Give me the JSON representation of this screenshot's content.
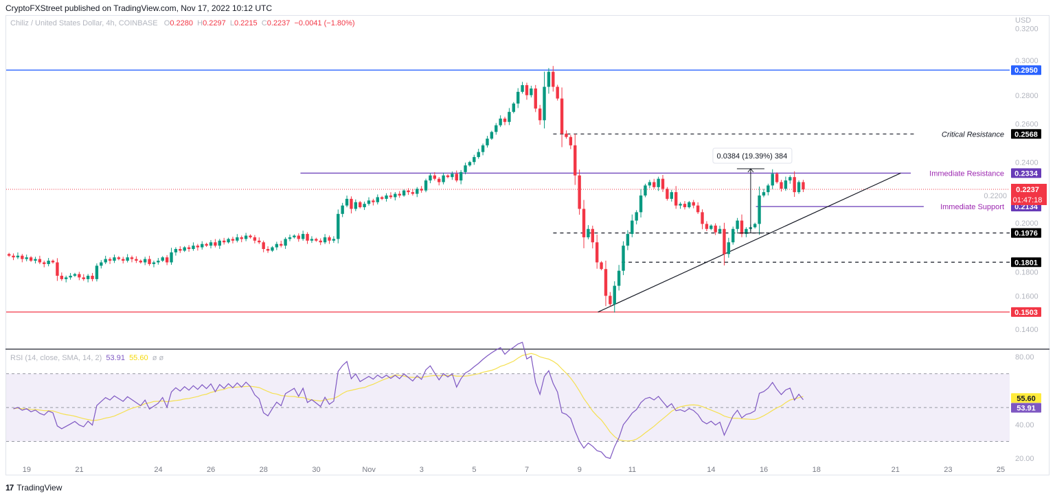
{
  "header": {
    "published": "CryptoFXStreet published on TradingView.com, Nov 17, 2022 10:12 UTC"
  },
  "legend": {
    "symbol": "Chiliz / United States Dollar, 4h, COINBASE",
    "o_label": "O",
    "o": "0.2280",
    "h_label": "H",
    "h": "0.2297",
    "l_label": "L",
    "l": "0.2215",
    "c_label": "C",
    "c": "0.2237",
    "change": "−0.0041 (−1.80%)"
  },
  "rsi_legend": {
    "label": "RSI (14, close, SMA, 14, 2)",
    "rsi": "53.91",
    "sma": "55.60",
    "extra": "ø ø"
  },
  "footer": {
    "brand": "TradingView"
  },
  "colors": {
    "up": "#089981",
    "down": "#f23645",
    "purple": "#673ab7",
    "blue": "#2962ff",
    "rsi": "#7e57c2",
    "sma": "#ffeb3b"
  },
  "chart_data": {
    "type": "candlestick",
    "title": "Chiliz / United States Dollar, 4h, COINBASE",
    "currency": "USD",
    "ylim": [
      0.13,
      0.3125
    ],
    "y_ticks": [
      "0.3200",
      "0.3000",
      "0.2800",
      "0.2600",
      "0.2400",
      "0.2200",
      "0.2000",
      "0.1800",
      "0.1600",
      "0.1400"
    ],
    "x_ticks": [
      "19",
      "21",
      "24",
      "26",
      "28",
      "30",
      "Nov",
      "3",
      "5",
      "7",
      "9",
      "11",
      "14",
      "16",
      "18",
      "21",
      "23",
      "25"
    ],
    "x_tick_days": [
      1,
      3,
      6,
      8,
      10,
      12,
      14,
      16,
      18,
      20,
      22,
      24,
      27,
      29,
      31,
      34,
      36,
      38
    ],
    "first_candle_day": 0.33,
    "candles_per_day": 6,
    "closes": [
      0.184,
      0.183,
      0.184,
      0.182,
      0.183,
      0.181,
      0.182,
      0.18,
      0.179,
      0.181,
      0.18,
      0.172,
      0.17,
      0.171,
      0.172,
      0.173,
      0.171,
      0.17,
      0.172,
      0.17,
      0.178,
      0.18,
      0.182,
      0.181,
      0.183,
      0.182,
      0.181,
      0.183,
      0.182,
      0.181,
      0.18,
      0.182,
      0.179,
      0.18,
      0.181,
      0.183,
      0.18,
      0.186,
      0.188,
      0.187,
      0.189,
      0.188,
      0.19,
      0.189,
      0.191,
      0.19,
      0.192,
      0.19,
      0.193,
      0.192,
      0.194,
      0.193,
      0.195,
      0.194,
      0.196,
      0.195,
      0.193,
      0.192,
      0.188,
      0.187,
      0.189,
      0.191,
      0.19,
      0.194,
      0.195,
      0.196,
      0.194,
      0.197,
      0.193,
      0.194,
      0.193,
      0.192,
      0.195,
      0.193,
      0.194,
      0.209,
      0.214,
      0.218,
      0.212,
      0.216,
      0.213,
      0.215,
      0.217,
      0.216,
      0.219,
      0.218,
      0.22,
      0.219,
      0.221,
      0.22,
      0.223,
      0.222,
      0.221,
      0.224,
      0.223,
      0.229,
      0.232,
      0.23,
      0.228,
      0.232,
      0.231,
      0.233,
      0.229,
      0.234,
      0.238,
      0.24,
      0.243,
      0.246,
      0.25,
      0.254,
      0.258,
      0.262,
      0.266,
      0.264,
      0.27,
      0.275,
      0.282,
      0.286,
      0.28,
      0.284,
      0.272,
      0.265,
      0.285,
      0.294,
      0.285,
      0.278,
      0.257,
      0.255,
      0.25,
      0.232,
      0.212,
      0.195,
      0.2,
      0.192,
      0.18,
      0.176,
      0.16,
      0.155,
      0.166,
      0.175,
      0.19,
      0.197,
      0.205,
      0.21,
      0.22,
      0.226,
      0.228,
      0.225,
      0.23,
      0.224,
      0.218,
      0.222,
      0.214,
      0.215,
      0.213,
      0.216,
      0.214,
      0.21,
      0.203,
      0.2,
      0.202,
      0.198,
      0.2,
      0.185,
      0.192,
      0.2,
      0.205,
      0.197,
      0.2,
      0.201,
      0.203,
      0.22,
      0.222,
      0.226,
      0.233,
      0.228,
      0.224,
      0.229,
      0.231,
      0.222,
      0.228,
      0.2237
    ],
    "levels": [
      {
        "price": 0.295,
        "label": "",
        "tag": "0.2950",
        "style": "solid",
        "color": "#2962ff",
        "tagbg": "#2962ff",
        "from_day": -1
      },
      {
        "price": 0.2568,
        "label": "Critical Resistance",
        "tag": "0.2568",
        "style": "dashed",
        "color": "#131722",
        "tagbg": "#000000",
        "from_day": 21.0
      },
      {
        "price": 0.2334,
        "label": "Immediate Resistance",
        "tag": "0.2334",
        "style": "solid",
        "color": "#673ab7",
        "tagbg": "#673ab7",
        "from_day": 11.4
      },
      {
        "price": 0.2134,
        "label": "Immediate Support",
        "tag": "0.2134",
        "style": "solid",
        "color": "#673ab7",
        "tagbg": "#673ab7",
        "from_day": 28.7
      },
      {
        "price": 0.1976,
        "label": "",
        "tag": "0.1976",
        "style": "dashed",
        "color": "#131722",
        "tagbg": "#000000",
        "from_day": 21.0
      },
      {
        "price": 0.1801,
        "label": "",
        "tag": "0.1801",
        "style": "dashed",
        "color": "#131722",
        "tagbg": "#000000",
        "from_day": 23.6
      },
      {
        "price": 0.1503,
        "label": "",
        "tag": "0.1503",
        "style": "solid",
        "color": "#f23645",
        "tagbg": "#f23645",
        "from_day": -1
      }
    ],
    "current_price": {
      "value": 0.2237,
      "tag": "0.2237",
      "countdown": "01:47:18"
    },
    "trendline": {
      "from": {
        "day": 22.7,
        "price": 0.1503
      },
      "to": {
        "day": 34.2,
        "price": 0.2334
      }
    },
    "measure": {
      "from_price": 0.1976,
      "to_price": 0.236,
      "day": 28.5,
      "label": "0.0384 (19.39%) 384"
    },
    "rsi": {
      "ylim": [
        15,
        85
      ],
      "y_ticks": [
        "80.00",
        "40.00",
        "20.00"
      ],
      "bands": [
        70,
        50,
        30
      ],
      "last_rsi": "53.91",
      "last_sma": "55.60"
    }
  }
}
